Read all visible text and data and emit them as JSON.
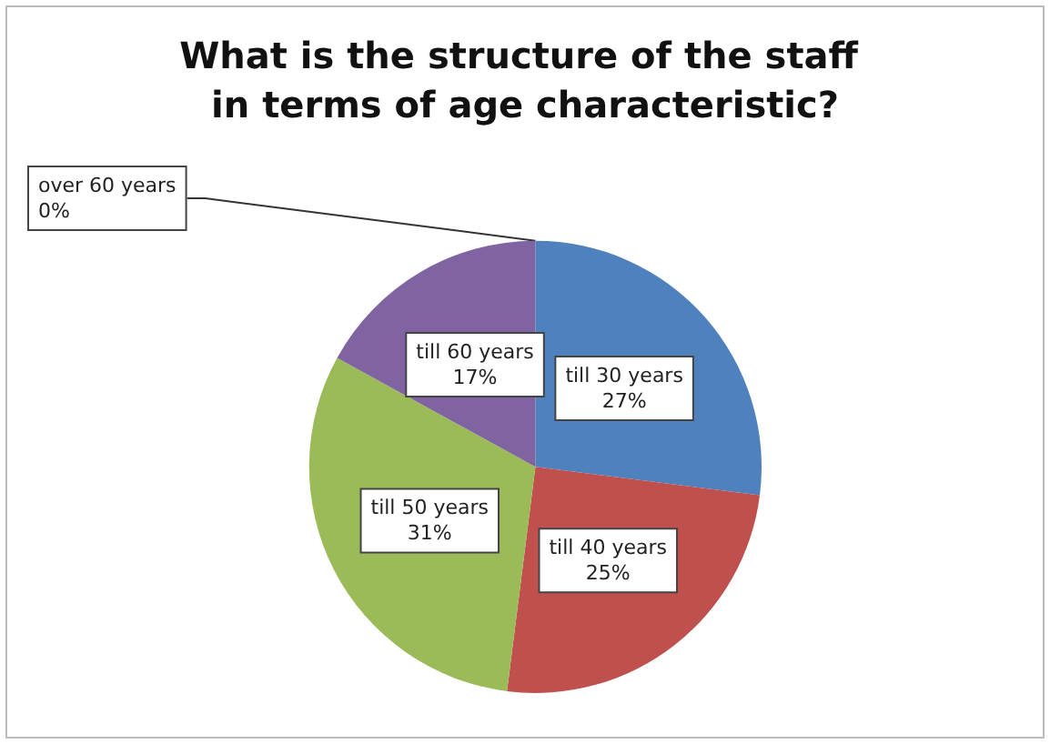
{
  "chart_data": {
    "type": "pie",
    "title": "What is the structure of the staff in terms of age characteristic?",
    "categories": [
      "till 30 years",
      "till 40 years",
      "till 50 years",
      "till 60 years",
      "over 60 years"
    ],
    "values": [
      27,
      25,
      31,
      17,
      0
    ],
    "colors": [
      "#4f81bd",
      "#c0504d",
      "#9bbb59",
      "#8064a2",
      "#4bacc6"
    ],
    "value_labels": [
      "27%",
      "25%",
      "31%",
      "17%",
      "0%"
    ],
    "legend": false
  }
}
